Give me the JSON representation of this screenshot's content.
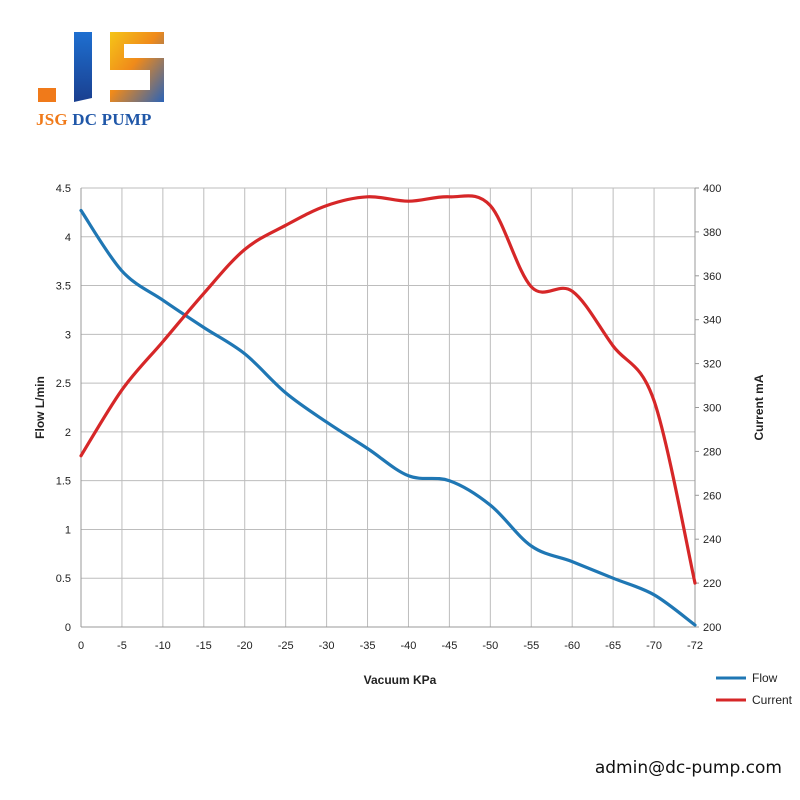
{
  "brand": {
    "logo_text_1": "JSG",
    "logo_text_2": "DC PUMP",
    "colors": {
      "orange": "#f07a1a",
      "blue": "#2057a8",
      "gold": "#f5c518"
    }
  },
  "contact": {
    "email": "admin@dc-pump.com"
  },
  "chart_data": {
    "type": "line",
    "xlabel": "Vacuum  KPa",
    "ylabel_left": "Flow  L/min",
    "ylabel_right": "Current mA",
    "categories": [
      "0",
      "-5",
      "-10",
      "-15",
      "-20",
      "-25",
      "-30",
      "-35",
      "-40",
      "-45",
      "-50",
      "-55",
      "-60",
      "-65",
      "-70",
      "-72"
    ],
    "ylim_left": [
      0,
      4.5
    ],
    "ylim_right": [
      200,
      400
    ],
    "yticks_left": [
      "0",
      "0.5",
      "1",
      "1.5",
      "2",
      "2.5",
      "3",
      "3.5",
      "4",
      "4.5"
    ],
    "yticks_right": [
      "200",
      "220",
      "240",
      "260",
      "280",
      "300",
      "320",
      "340",
      "360",
      "380",
      "400"
    ],
    "grid": true,
    "legend_position": "bottom-right",
    "series": [
      {
        "name": "Flow",
        "axis": "left",
        "color": "#1f77b4",
        "values": [
          4.27,
          3.65,
          3.35,
          3.07,
          2.8,
          2.4,
          2.1,
          1.83,
          1.55,
          1.5,
          1.25,
          0.83,
          0.67,
          0.5,
          0.33,
          0.02
        ]
      },
      {
        "name": "Current",
        "axis": "right",
        "color": "#d62728",
        "values": [
          278,
          308,
          330,
          352,
          372,
          383,
          392,
          396,
          394,
          396,
          392,
          355,
          353,
          328,
          303,
          220
        ]
      }
    ]
  }
}
